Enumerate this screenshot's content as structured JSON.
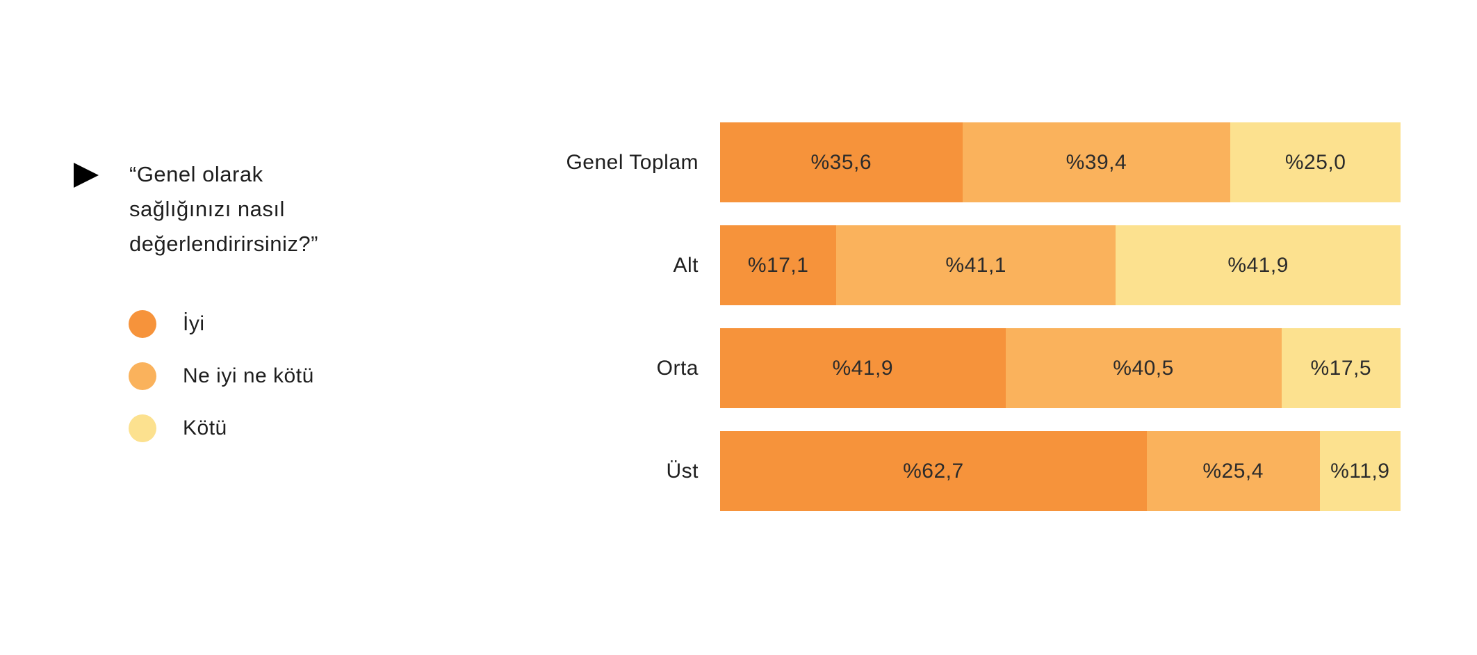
{
  "colors": {
    "background": "#FFFFFF",
    "marker": "#000000",
    "text": "#1E1E1E",
    "series_good": "#F6933B",
    "series_neutral": "#FAB25C",
    "series_bad": "#FCE18F"
  },
  "question": {
    "text": "“Genel olarak sağlığınızı nasıl değerlendirirsiniz?”"
  },
  "legend": [
    {
      "label": "İyi",
      "color": "#F6933B"
    },
    {
      "label": "Ne iyi ne kötü",
      "color": "#FAB25C"
    },
    {
      "label": "Kötü",
      "color": "#FCE18F"
    }
  ],
  "chart_data": {
    "type": "bar",
    "orientation": "horizontal",
    "stacked": true,
    "grid": false,
    "xlim": [
      0,
      100
    ],
    "categories": [
      "Genel Toplam",
      "Alt",
      "Orta",
      "Üst"
    ],
    "series": [
      {
        "name": "İyi",
        "color": "#F6933B",
        "values": [
          35.6,
          17.1,
          41.9,
          62.7
        ],
        "labels": [
          "%35,6",
          "%17,1",
          "%41,9",
          "%62,7"
        ]
      },
      {
        "name": "Ne iyi ne kötü",
        "color": "#FAB25C",
        "values": [
          39.4,
          41.1,
          40.5,
          25.4
        ],
        "labels": [
          "%39,4",
          "%41,1",
          "%40,5",
          "%25,4"
        ]
      },
      {
        "name": "Kötü",
        "color": "#FCE18F",
        "values": [
          25.0,
          41.9,
          17.5,
          11.9
        ],
        "labels": [
          "%25,0",
          "%41,9",
          "%17,5",
          "%11,9"
        ]
      }
    ]
  }
}
